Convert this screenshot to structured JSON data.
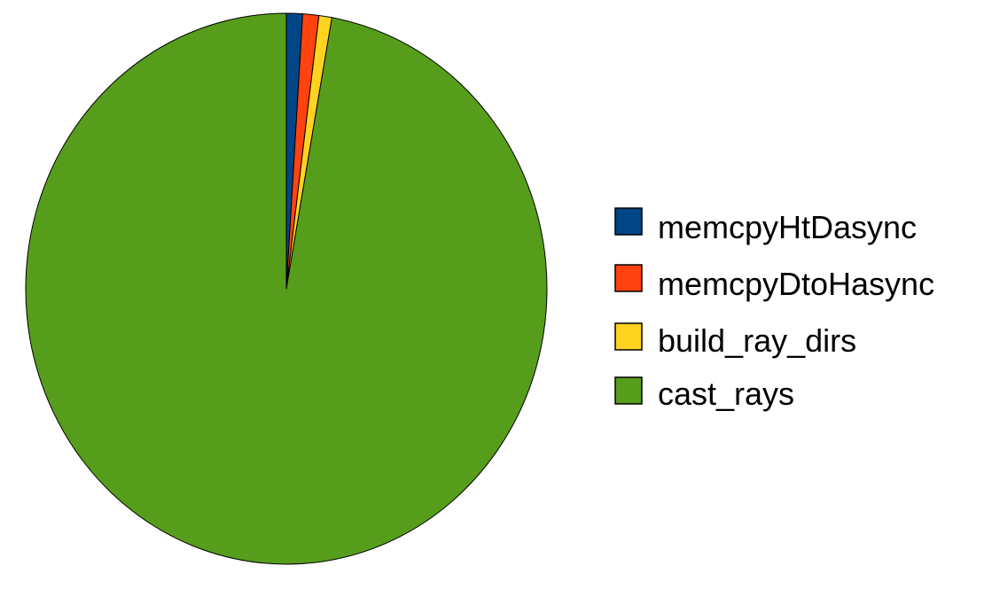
{
  "chart_data": {
    "type": "pie",
    "legend_position": "right",
    "slices": [
      {
        "label": "memcpyHtDasync",
        "value": 1.0,
        "color": "#004586"
      },
      {
        "label": "memcpyDtoHasync",
        "value": 1.0,
        "color": "#ff420e"
      },
      {
        "label": "build_ray_dirs",
        "value": 0.8,
        "color": "#ffd320"
      },
      {
        "label": "cast_rays",
        "value": 97.2,
        "color": "#579d1c"
      }
    ]
  }
}
